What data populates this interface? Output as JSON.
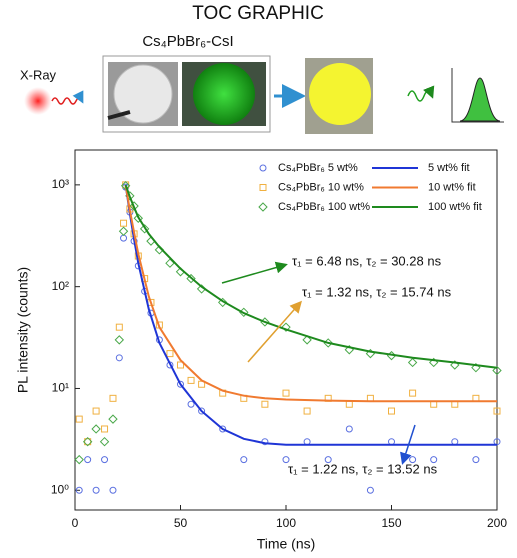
{
  "header": {
    "title": "TOC GRAPHIC",
    "sample_label": "Cs₄PbBr₆-CsI",
    "source_label": "X-Ray"
  },
  "chart_data": {
    "type": "scatter",
    "xlabel": "Time (ns)",
    "ylabel": "PL intensity (counts)",
    "xlim": [
      0,
      200
    ],
    "xticks": [
      0,
      50,
      100,
      150,
      200
    ],
    "ylim": [
      0.64,
      2200
    ],
    "yscale": "log",
    "yticks": [
      {
        "value": 1,
        "label": "10⁰"
      },
      {
        "value": 10,
        "label": "10¹"
      },
      {
        "value": 100,
        "label": "10²"
      },
      {
        "value": 1000,
        "label": "10³"
      }
    ],
    "series": [
      {
        "name": "Cs₄PbBr₆  5 wt%",
        "color": "#5a6fe0",
        "marker": "circle",
        "x": [
          2,
          6,
          10,
          14,
          18,
          21,
          23,
          24,
          26,
          28,
          30,
          33,
          36,
          40,
          45,
          50,
          55,
          60,
          70,
          80,
          90,
          100,
          110,
          120,
          130,
          140,
          150,
          160,
          170,
          180,
          190,
          200
        ],
        "values": [
          1,
          2,
          1,
          2,
          1,
          20,
          300,
          950,
          540,
          280,
          160,
          90,
          55,
          30,
          17,
          11,
          7,
          6,
          4,
          2,
          3,
          2,
          3,
          2,
          4,
          1,
          3,
          2,
          2,
          3,
          2,
          3
        ]
      },
      {
        "name": "Cs₄PbBr₆  10 wt%",
        "color": "#f0b040",
        "marker": "square",
        "x": [
          2,
          6,
          10,
          14,
          18,
          21,
          23,
          24,
          26,
          28,
          30,
          33,
          36,
          40,
          45,
          50,
          55,
          60,
          70,
          80,
          90,
          100,
          110,
          120,
          130,
          140,
          150,
          160,
          170,
          180,
          190,
          200
        ],
        "values": [
          5,
          3,
          6,
          4,
          8,
          40,
          420,
          1000,
          580,
          330,
          200,
          120,
          70,
          42,
          22,
          17,
          12,
          11,
          9,
          8,
          7,
          9,
          6,
          8,
          7,
          8,
          6,
          9,
          7,
          7,
          8,
          6
        ]
      },
      {
        "name": "Cs₄PbBr₆  100 wt%",
        "color": "#4aa84a",
        "marker": "diamond",
        "x": [
          2,
          6,
          10,
          14,
          18,
          21,
          23,
          24,
          26,
          28,
          30,
          33,
          36,
          40,
          45,
          50,
          55,
          60,
          70,
          80,
          90,
          100,
          110,
          120,
          130,
          140,
          150,
          160,
          170,
          180,
          190,
          200
        ],
        "values": [
          2,
          3,
          4,
          3,
          5,
          30,
          350,
          980,
          780,
          620,
          470,
          370,
          280,
          230,
          170,
          140,
          120,
          95,
          70,
          56,
          45,
          40,
          30,
          28,
          24,
          22,
          21,
          18,
          18,
          17,
          16,
          15
        ]
      },
      {
        "name": "5 wt% fit",
        "color": "#1f35d6",
        "style": "line",
        "x": [
          24,
          26,
          28,
          30,
          35,
          40,
          50,
          60,
          70,
          80,
          90,
          100,
          120,
          140,
          160,
          180,
          200
        ],
        "values": [
          1000,
          520,
          290,
          170,
          60,
          28,
          11,
          6,
          4,
          3.2,
          2.9,
          2.8,
          2.8,
          2.8,
          2.8,
          2.8,
          2.8
        ]
      },
      {
        "name": "10 wt% fit",
        "color": "#f07a30",
        "style": "line",
        "x": [
          24,
          26,
          28,
          30,
          35,
          40,
          50,
          60,
          70,
          80,
          90,
          100,
          120,
          140,
          160,
          180,
          200
        ],
        "values": [
          1000,
          560,
          340,
          210,
          80,
          40,
          19,
          12,
          9.5,
          8.5,
          8,
          7.8,
          7.6,
          7.5,
          7.5,
          7.5,
          7.5
        ]
      },
      {
        "name": "100 wt% fit",
        "color": "#1e8a1e",
        "style": "line",
        "x": [
          24,
          26,
          28,
          30,
          35,
          40,
          50,
          60,
          70,
          80,
          90,
          100,
          120,
          140,
          160,
          180,
          200
        ],
        "values": [
          1000,
          760,
          600,
          480,
          330,
          245,
          150,
          100,
          72,
          55,
          45,
          38,
          28,
          23,
          20,
          18,
          16
        ]
      }
    ],
    "annotations": [
      "τ₁ = 6.48 ns,  τ₂ = 30.28 ns",
      "τ₁ = 1.32 ns,  τ₂ = 15.74 ns",
      "τ₁ = 1.22 ns,  τ₂ = 13.52 ns"
    ]
  }
}
